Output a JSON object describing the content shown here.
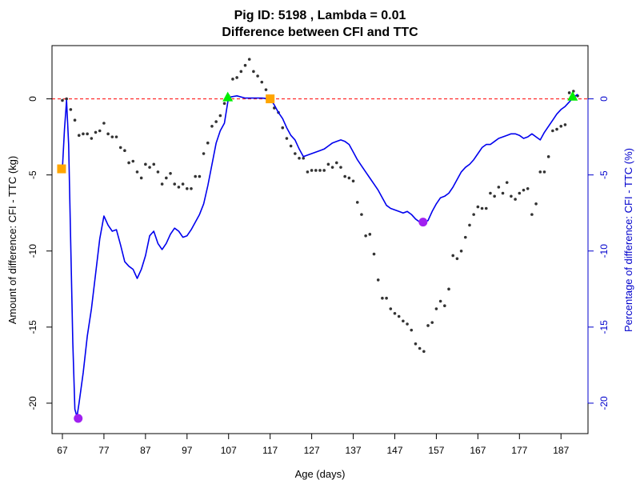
{
  "chart_data": {
    "type": "scatter",
    "title": "Pig ID: 5198 , Lambda = 0.01",
    "subtitle": "Difference between CFI and TTC",
    "xlabel": "Age (days)",
    "ylabel_left": "Amount of difference: CFI - TTC (kg)",
    "ylabel_right": "Percentage of difference: CFI - TTC (%)",
    "xlim": [
      64.5,
      193.5
    ],
    "ylim_left": [
      -22,
      3.5
    ],
    "ylim_right": [
      -22,
      3.5
    ],
    "x_ticks": [
      67,
      77,
      87,
      97,
      107,
      117,
      127,
      137,
      147,
      157,
      167,
      177,
      187
    ],
    "y_ticks_left": [
      0,
      -5,
      -10,
      -15,
      -20
    ],
    "y_ticks_right": [
      0,
      -5,
      -10,
      -15,
      -20
    ],
    "reference_line": {
      "y": 0,
      "color": "#ff0000",
      "style": "dashed"
    },
    "series": [
      {
        "kind": "points",
        "color": "#333333",
        "x": [
          67,
          68,
          69,
          70,
          71,
          72,
          73,
          74,
          75,
          76,
          77,
          78,
          79,
          80,
          81,
          82,
          83,
          84,
          85,
          86,
          87,
          88,
          89,
          90,
          91,
          92,
          93,
          94,
          95,
          96,
          97,
          98,
          99,
          100,
          101,
          102,
          103,
          104,
          105,
          106,
          107,
          108,
          109,
          110,
          111,
          112,
          113,
          114,
          115,
          116,
          117,
          118,
          119,
          120,
          121,
          122,
          123,
          124,
          125,
          126,
          127,
          128,
          129,
          130,
          131,
          132,
          133,
          134,
          135,
          136,
          137,
          138,
          139,
          140,
          141,
          142,
          143,
          144,
          145,
          146,
          147,
          148,
          149,
          150,
          151,
          152,
          153,
          154,
          155,
          156,
          157,
          158,
          159,
          160,
          161,
          162,
          163,
          164,
          165,
          166,
          167,
          168,
          169,
          170,
          171,
          172,
          173,
          174,
          175,
          176,
          177,
          178,
          179,
          180,
          181,
          182,
          183,
          184,
          185,
          186,
          187,
          188,
          189,
          190,
          191
        ],
        "y": [
          -0.1,
          0.0,
          -0.7,
          -1.4,
          -2.4,
          -2.3,
          -2.3,
          -2.6,
          -2.2,
          -2.1,
          -1.6,
          -2.3,
          -2.5,
          -2.5,
          -3.2,
          -3.4,
          -4.2,
          -4.1,
          -4.8,
          -5.2,
          -4.3,
          -4.5,
          -4.3,
          -4.8,
          -5.6,
          -5.2,
          -4.9,
          -5.6,
          -5.8,
          -5.6,
          -5.9,
          -5.9,
          -5.1,
          -5.1,
          -3.6,
          -2.9,
          -1.8,
          -1.5,
          -1.1,
          -0.3,
          0.2,
          1.3,
          1.4,
          1.8,
          2.2,
          2.6,
          1.8,
          1.5,
          1.1,
          0.6,
          0.1,
          -0.6,
          -0.9,
          -1.9,
          -2.6,
          -3.1,
          -3.6,
          -3.9,
          -3.9,
          -4.8,
          -4.7,
          -4.7,
          -4.7,
          -4.7,
          -4.3,
          -4.5,
          -4.2,
          -4.5,
          -5.1,
          -5.2,
          -5.4,
          -6.8,
          -7.6,
          -9.0,
          -8.9,
          -10.2,
          -11.9,
          -13.1,
          -13.1,
          -13.8,
          -14.1,
          -14.3,
          -14.6,
          -14.8,
          -15.2,
          -16.1,
          -16.4,
          -16.6,
          -14.9,
          -14.7,
          -13.8,
          -13.3,
          -13.6,
          -12.5,
          -10.3,
          -10.5,
          -10.0,
          -9.1,
          -8.3,
          -7.6,
          -7.1,
          -7.2,
          -7.2,
          -6.2,
          -6.4,
          -5.8,
          -6.2,
          -5.5,
          -6.4,
          -6.6,
          -6.2,
          -6.0,
          -5.9,
          -7.6,
          -6.9,
          -4.8,
          -4.8,
          -3.8,
          -2.1,
          -2.0,
          -1.8,
          -1.7,
          0.4,
          0.5,
          0.2
        ]
      },
      {
        "kind": "line",
        "axis": "right",
        "color": "#0000ee",
        "x": [
          67,
          67.5,
          68,
          68.5,
          69,
          69.5,
          70,
          70.5,
          71,
          72,
          73,
          74,
          75,
          76,
          77,
          78,
          79,
          80,
          81,
          82,
          83,
          84,
          85,
          86,
          87,
          88,
          89,
          90,
          91,
          92,
          93,
          94,
          95,
          96,
          97,
          98,
          99,
          100,
          101,
          102,
          103,
          104,
          105,
          106,
          107,
          109,
          111,
          113,
          115,
          117,
          118,
          119,
          120,
          121,
          122,
          123,
          124,
          125,
          126,
          127,
          128,
          129,
          130,
          131,
          132,
          133,
          134,
          135,
          136,
          137,
          138,
          139,
          140,
          141,
          142,
          143,
          144,
          145,
          146,
          147,
          148,
          149,
          150,
          151,
          152,
          153,
          154,
          155,
          156,
          157,
          158,
          159,
          160,
          161,
          162,
          163,
          164,
          165,
          166,
          167,
          168,
          169,
          170,
          171,
          172,
          173,
          174,
          175,
          176,
          177,
          178,
          179,
          180,
          181,
          182,
          183,
          184,
          185,
          186,
          187,
          188,
          189,
          190,
          191
        ],
        "y": [
          -4.6,
          -2.0,
          -0.1,
          -3.0,
          -9.5,
          -16.0,
          -20.4,
          -20.9,
          -20.0,
          -18.0,
          -15.6,
          -13.8,
          -11.5,
          -9.2,
          -7.7,
          -8.3,
          -8.7,
          -8.6,
          -9.6,
          -10.7,
          -11.0,
          -11.2,
          -11.8,
          -11.2,
          -10.3,
          -9.0,
          -8.7,
          -9.5,
          -9.9,
          -9.5,
          -8.9,
          -8.5,
          -8.7,
          -9.1,
          -9.0,
          -8.6,
          -8.1,
          -7.6,
          -6.9,
          -5.7,
          -4.3,
          -2.9,
          -2.1,
          -1.6,
          0.1,
          0.2,
          0.05,
          0.05,
          0.05,
          0.0,
          -0.4,
          -0.9,
          -1.3,
          -1.9,
          -2.4,
          -2.7,
          -3.3,
          -3.8,
          -3.7,
          -3.6,
          -3.5,
          -3.4,
          -3.3,
          -3.1,
          -2.9,
          -2.8,
          -2.7,
          -2.8,
          -3.0,
          -3.5,
          -4.0,
          -4.4,
          -4.8,
          -5.2,
          -5.6,
          -6.0,
          -6.5,
          -7.0,
          -7.2,
          -7.3,
          -7.4,
          -7.5,
          -7.4,
          -7.6,
          -7.9,
          -8.1,
          -8.1,
          -8.0,
          -7.4,
          -6.9,
          -6.5,
          -6.4,
          -6.2,
          -5.8,
          -5.3,
          -4.8,
          -4.5,
          -4.3,
          -4.0,
          -3.6,
          -3.2,
          -3.0,
          -3.0,
          -2.8,
          -2.6,
          -2.5,
          -2.4,
          -2.3,
          -2.3,
          -2.4,
          -2.6,
          -2.5,
          -2.3,
          -2.5,
          -2.7,
          -2.2,
          -1.8,
          -1.4,
          -1.0,
          -0.7,
          -0.5,
          -0.2,
          0.1,
          0.3
        ]
      },
      {
        "kind": "markers",
        "shape": "square",
        "color": "#ffa500",
        "x": [
          66.8,
          117
        ],
        "y": [
          -4.6,
          0.0
        ]
      },
      {
        "kind": "markers",
        "shape": "triangle",
        "color": "#00ee00",
        "x": [
          106.8,
          189.8
        ],
        "y": [
          0.1,
          0.15
        ]
      },
      {
        "kind": "markers",
        "shape": "circle",
        "color": "#a020f0",
        "x": [
          70.8,
          153.8
        ],
        "y": [
          -21.0,
          -8.1
        ]
      }
    ],
    "right_axis_color": "#0000cc",
    "grid": false,
    "legend": "none"
  }
}
